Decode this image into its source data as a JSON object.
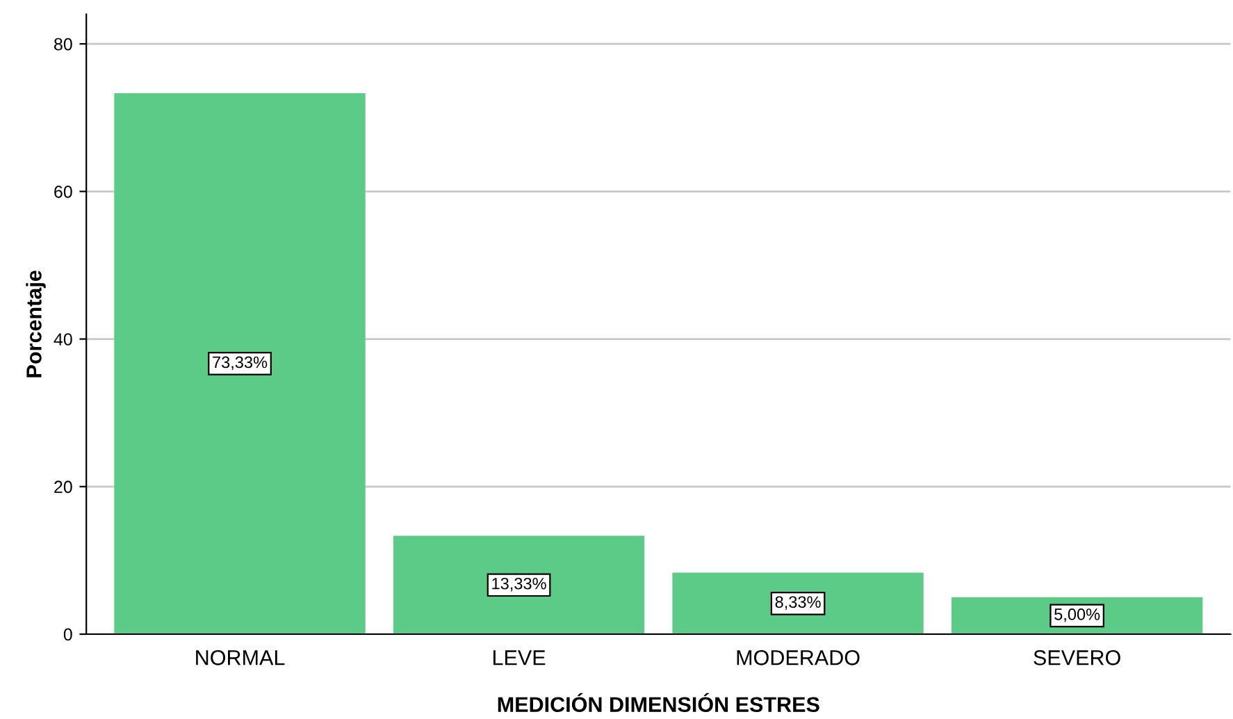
{
  "chart_data": {
    "type": "bar",
    "xlabel": "MEDICIÓN DIMENSIÓN ESTRES",
    "ylabel": "Porcentaje",
    "categories": [
      "NORMAL",
      "LEVE",
      "MODERADO",
      "SEVERO"
    ],
    "values": [
      73.33,
      13.33,
      8.33,
      5.0
    ],
    "value_labels": [
      "73,33%",
      "13,33%",
      "8,33%",
      "5,00%"
    ],
    "color": "#5ccb88",
    "ylim": [
      0,
      84
    ],
    "yticks": [
      0,
      20,
      40,
      60,
      80
    ],
    "grid": "y"
  }
}
